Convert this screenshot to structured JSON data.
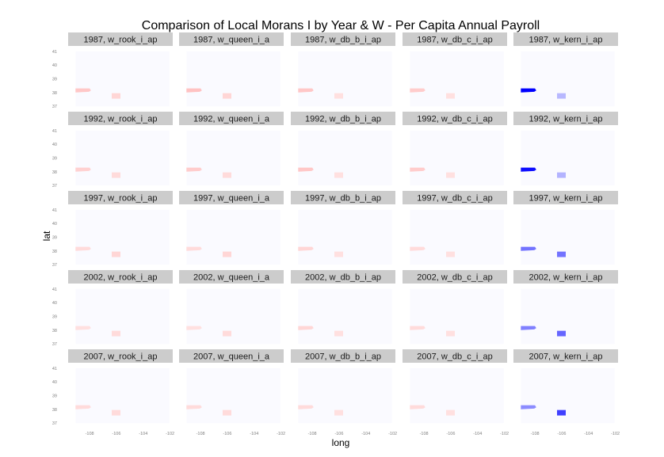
{
  "chart_data": {
    "type": "heatmap",
    "title": "Comparison of Local Morans I by Year & W - Per Capita Annual Payroll",
    "xlabel": "long",
    "ylabel": "lat",
    "xlim": [
      -109.6,
      -101.8
    ],
    "ylim": [
      36.6,
      41.4
    ],
    "x_ticks": [
      -108,
      -106,
      -104,
      -102
    ],
    "x_tick_labels": [
      "-108",
      "-106",
      "-104",
      "-102"
    ],
    "y_ticks": [
      37,
      38,
      39,
      40,
      41
    ],
    "y_tick_labels": [
      "37",
      "38",
      "39",
      "40",
      "41"
    ],
    "years": [
      "1987",
      "1992",
      "1997",
      "2002",
      "2007"
    ],
    "weights": [
      "w_rook_i_ap",
      "w_queen_i_a",
      "w_db_b_i_ap",
      "w_db_c_i_ap",
      "w_kern_i_ap"
    ],
    "panels": [
      {
        "label": "1987, w_rook_i_ap",
        "west_cluster": 0.22,
        "center_cluster": 0.16
      },
      {
        "label": "1987, w_queen_i_a",
        "west_cluster": 0.24,
        "center_cluster": 0.16
      },
      {
        "label": "1987, w_db_b_i_ap",
        "west_cluster": 0.22,
        "center_cluster": 0.12
      },
      {
        "label": "1987, w_db_c_i_ap",
        "west_cluster": 0.2,
        "center_cluster": 0.12
      },
      {
        "label": "1987, w_kern_i_ap",
        "west_cluster": -1.0,
        "center_cluster": -0.28
      },
      {
        "label": "1992, w_rook_i_ap",
        "west_cluster": 0.18,
        "center_cluster": 0.14
      },
      {
        "label": "1992, w_queen_i_a",
        "west_cluster": 0.2,
        "center_cluster": 0.14
      },
      {
        "label": "1992, w_db_b_i_ap",
        "west_cluster": 0.22,
        "center_cluster": 0.12
      },
      {
        "label": "1992, w_db_c_i_ap",
        "west_cluster": 0.2,
        "center_cluster": 0.12
      },
      {
        "label": "1992, w_kern_i_ap",
        "west_cluster": -0.95,
        "center_cluster": -0.3
      },
      {
        "label": "1997, w_rook_i_ap",
        "west_cluster": 0.14,
        "center_cluster": 0.16
      },
      {
        "label": "1997, w_queen_i_a",
        "west_cluster": 0.14,
        "center_cluster": 0.16
      },
      {
        "label": "1997, w_db_b_i_ap",
        "west_cluster": 0.16,
        "center_cluster": 0.12
      },
      {
        "label": "1997, w_db_c_i_ap",
        "west_cluster": 0.14,
        "center_cluster": 0.12
      },
      {
        "label": "1997, w_kern_i_ap",
        "west_cluster": -0.55,
        "center_cluster": -0.55
      },
      {
        "label": "2002, w_rook_i_ap",
        "west_cluster": 0.12,
        "center_cluster": 0.14
      },
      {
        "label": "2002, w_queen_i_a",
        "west_cluster": 0.12,
        "center_cluster": 0.14
      },
      {
        "label": "2002, w_db_b_i_ap",
        "west_cluster": 0.16,
        "center_cluster": 0.12
      },
      {
        "label": "2002, w_db_c_i_ap",
        "west_cluster": 0.14,
        "center_cluster": 0.12
      },
      {
        "label": "2002, w_kern_i_ap",
        "west_cluster": -0.5,
        "center_cluster": -0.6
      },
      {
        "label": "2007, w_rook_i_ap",
        "west_cluster": 0.14,
        "center_cluster": 0.14
      },
      {
        "label": "2007, w_queen_i_a",
        "west_cluster": 0.14,
        "center_cluster": 0.14
      },
      {
        "label": "2007, w_db_b_i_ap",
        "west_cluster": 0.14,
        "center_cluster": 0.12
      },
      {
        "label": "2007, w_db_c_i_ap",
        "west_cluster": 0.14,
        "center_cluster": 0.12
      },
      {
        "label": "2007, w_kern_i_ap",
        "west_cluster": -0.45,
        "center_cluster": -0.75
      }
    ],
    "colors": {
      "positive": "#ff0000",
      "negative": "#0000ff",
      "neutral": "#ffffff",
      "strip": "#cccccc",
      "region_background": "#fafaff"
    },
    "grid": false,
    "legend": "none"
  }
}
